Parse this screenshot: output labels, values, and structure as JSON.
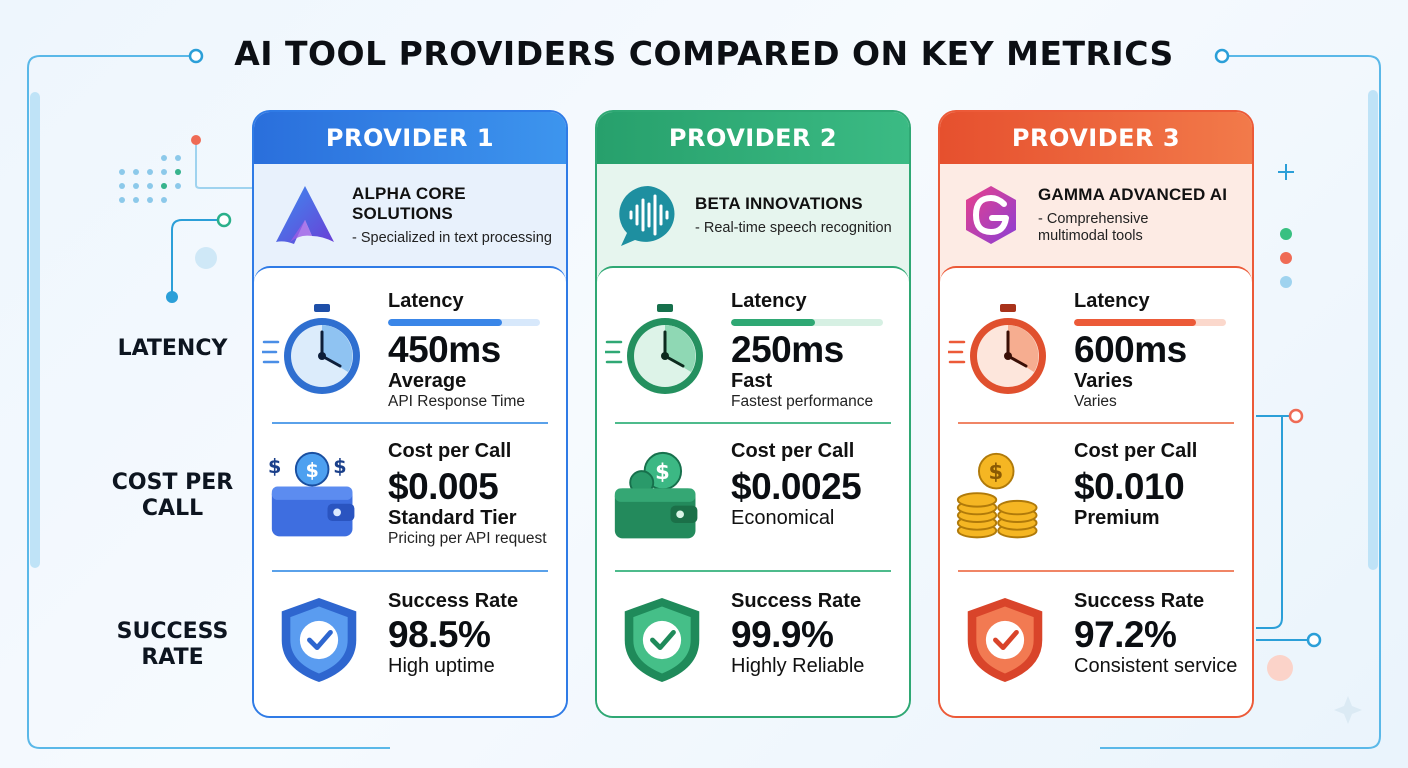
{
  "title": "AI TOOL PROVIDERS COMPARED ON KEY METRICS",
  "row_labels": {
    "latency": "LATENCY",
    "cost_line1": "COST PER",
    "cost_line2": "CALL",
    "success_line1": "SUCCESS",
    "success_line2": "RATE"
  },
  "colors": {
    "provider1": "#2f7be6",
    "provider2": "#2fa874",
    "provider3": "#ec5a38"
  },
  "providers": [
    {
      "header": "PROVIDER 1",
      "name": "ALPHA CORE SOLUTIONS",
      "description": "- Specialized in text processing",
      "logo_icon": "alpha-a-logo-icon",
      "latency": {
        "label": "Latency",
        "value": "450ms",
        "sub": "Average",
        "note": "API Response Time",
        "bar_fraction": 0.75
      },
      "cost": {
        "label": "Cost per Call",
        "value": "$0.005",
        "sub": "Standard Tier",
        "note": "Pricing per API request",
        "icon": "wallet-coins-icon"
      },
      "success": {
        "label": "Success Rate",
        "value": "98.5%",
        "sub": "High uptime",
        "icon": "shield-check-icon"
      }
    },
    {
      "header": "PROVIDER 2",
      "name": "BETA INNOVATIONS",
      "description": "- Real-time speech recognition",
      "logo_icon": "speech-waveform-logo-icon",
      "latency": {
        "label": "Latency",
        "value": "250ms",
        "sub": "Fast",
        "note": "Fastest performance",
        "bar_fraction": 0.55
      },
      "cost": {
        "label": "Cost per Call",
        "value": "$0.0025",
        "sub": "Economical",
        "note": "",
        "icon": "wallet-coin-icon"
      },
      "success": {
        "label": "Success Rate",
        "value": "99.9%",
        "sub": "Highly Reliable",
        "icon": "shield-check-icon"
      }
    },
    {
      "header": "PROVIDER 3",
      "name": "GAMMA ADVANCED AI",
      "description": "- Comprehensive\n  multimodal tools",
      "logo_icon": "gamma-g-logo-icon",
      "latency": {
        "label": "Latency",
        "value": "600ms",
        "sub": "Varies",
        "note": "Varies",
        "bar_fraction": 0.8
      },
      "cost": {
        "label": "Cost per Call",
        "value": "$0.010",
        "sub": "Premium",
        "note": "",
        "icon": "coin-stacks-icon"
      },
      "success": {
        "label": "Success Rate",
        "value": "97.2%",
        "sub": "Consistent service",
        "icon": "shield-check-icon"
      }
    }
  ]
}
